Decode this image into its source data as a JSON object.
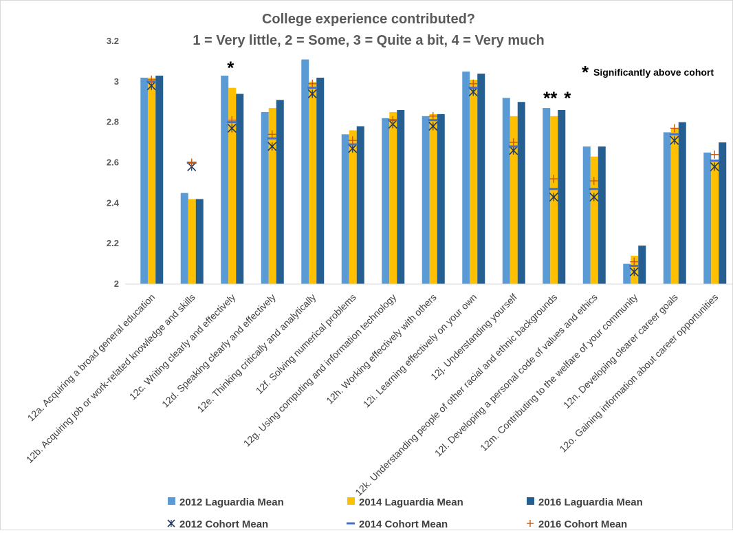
{
  "chart_data": {
    "type": "bar",
    "title": "College experience contributed?",
    "subtitle": "1 = Very little, 2 = Some, 3 = Quite a bit, 4 = Very much",
    "ylim": [
      2,
      3.2
    ],
    "yticks": [
      "2",
      "2.2",
      "2.4",
      "2.6",
      "2.8",
      "3",
      "3.2"
    ],
    "grid": false,
    "legend_position": "bottom",
    "categories": [
      "12a. Acquiring a broad general education",
      "12b. Acquiring job or work-related knowledge and skills",
      "12c. Writing clearly and effectively",
      "12d. Speaking clearly and effectively",
      "12e. Thinking critically and analytically",
      "12f. Solving numerical problems",
      "12g. Using computing and information technology",
      "12h. Working effectively with others",
      "12i. Learning effectively on your own",
      "12j. Understanding yourself",
      "12k. Understanding people of other racial and ethnic backgrounds",
      "12l. Developing a personal code of values and ethics",
      "12m. Contributing to the welfare of your community",
      "12n. Developing clearer career goals",
      "12o. Gaining information about career opportunities"
    ],
    "series": [
      {
        "name": "2012 Laguardia Mean",
        "kind": "bar",
        "color": "#5b9bd5",
        "values": [
          3.02,
          2.45,
          3.03,
          2.85,
          3.11,
          2.74,
          2.82,
          2.83,
          3.05,
          2.92,
          2.87,
          2.68,
          2.1,
          2.75,
          2.65
        ]
      },
      {
        "name": "2014 Laguardia Mean",
        "kind": "bar",
        "color": "#ffc000",
        "values": [
          3.02,
          2.42,
          2.97,
          2.87,
          3.0,
          2.76,
          2.85,
          2.84,
          3.01,
          2.83,
          2.83,
          2.63,
          2.14,
          2.77,
          2.61
        ]
      },
      {
        "name": "2016 Laguardia Mean",
        "kind": "bar",
        "color": "#255e91",
        "values": [
          3.03,
          2.42,
          2.94,
          2.91,
          3.02,
          2.78,
          2.86,
          2.84,
          3.04,
          2.9,
          2.86,
          2.68,
          2.19,
          2.8,
          2.7
        ]
      },
      {
        "name": "2012 Cohort Mean",
        "kind": "marker-x",
        "color": "#1f3864",
        "values": [
          2.98,
          2.58,
          2.77,
          2.68,
          2.94,
          2.67,
          2.79,
          2.78,
          2.95,
          2.66,
          2.43,
          2.43,
          2.06,
          2.71,
          2.58
        ]
      },
      {
        "name": "2014 Cohort Mean",
        "kind": "marker-dash",
        "color": "#4472c4",
        "values": [
          3.0,
          2.6,
          2.8,
          2.72,
          2.97,
          2.69,
          2.81,
          2.81,
          2.97,
          2.68,
          2.47,
          2.47,
          2.09,
          2.74,
          2.61
        ]
      },
      {
        "name": "2016 Cohort Mean",
        "kind": "marker-plus",
        "color": "#c55a11",
        "values": [
          3.01,
          2.6,
          2.81,
          2.74,
          2.99,
          2.71,
          2.81,
          2.83,
          2.99,
          2.7,
          2.52,
          2.51,
          2.11,
          2.77,
          2.64
        ]
      }
    ],
    "annotations": [
      {
        "text": "*",
        "category_index": 2,
        "y": 3.1
      },
      {
        "text": "**",
        "category_index": 10,
        "y": 2.95
      },
      {
        "text": "*",
        "category_index": 10,
        "y": 2.95
      }
    ],
    "note": {
      "symbol": "*",
      "text": "Significantly above cohort"
    }
  }
}
